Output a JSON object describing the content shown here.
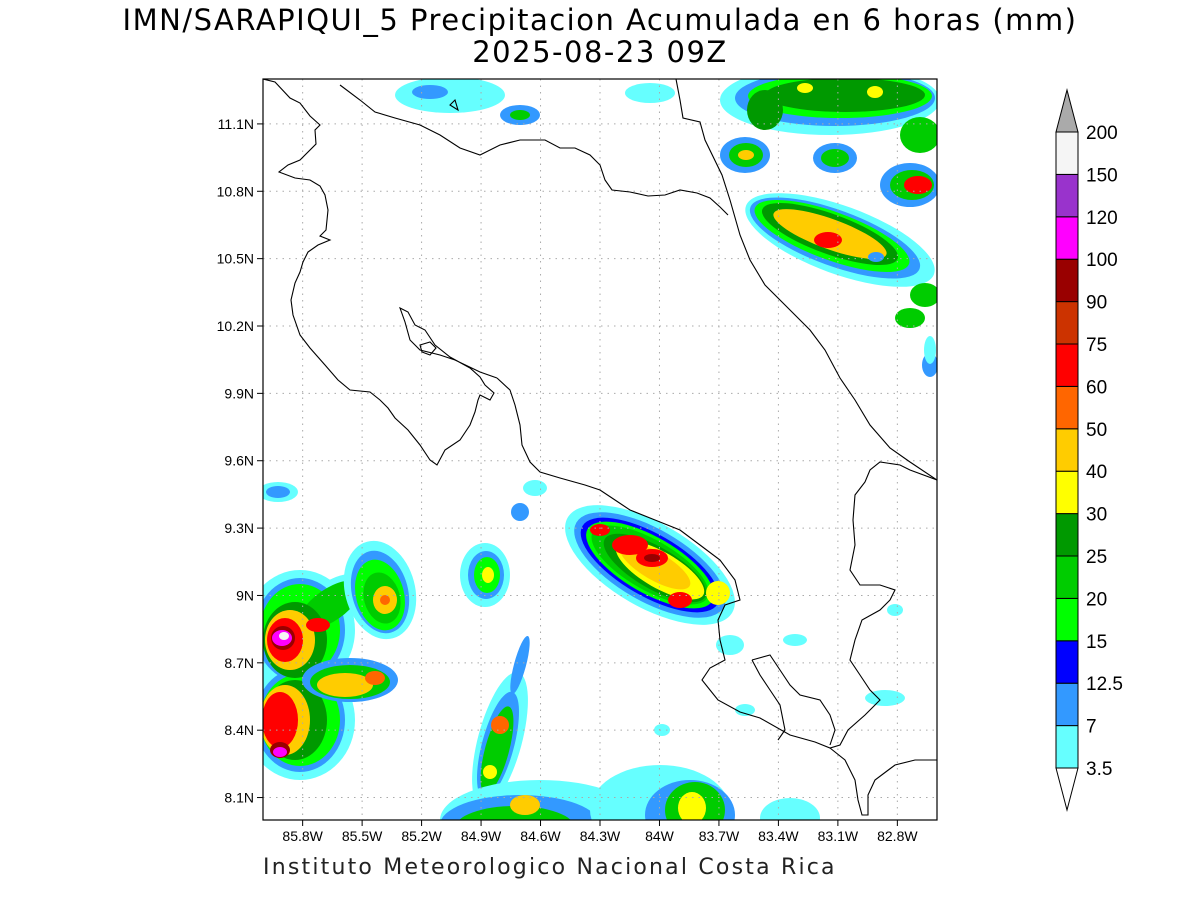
{
  "title_line1": "IMN/SARAPIQUI_5 Precipitacion Acumulada en 6 horas (mm)",
  "title_line2": "2025-08-23 09Z",
  "footer": "Instituto Meteorologico Nacional Costa Rica",
  "map": {
    "lon_range": [
      -86.0,
      -82.6
    ],
    "lat_range": [
      8.0,
      11.3
    ],
    "lon_ticks": [
      "85.8W",
      "85.5W",
      "85.2W",
      "84.9W",
      "84.6W",
      "84.3W",
      "84W",
      "83.7W",
      "83.4W",
      "83.1W",
      "82.8W"
    ],
    "lon_tick_values": [
      -85.8,
      -85.5,
      -85.2,
      -84.9,
      -84.6,
      -84.3,
      -84.0,
      -83.7,
      -83.4,
      -83.1,
      -82.8
    ],
    "lat_ticks": [
      "11.1N",
      "10.8N",
      "10.5N",
      "10.2N",
      "9.9N",
      "9.6N",
      "9.3N",
      "9N",
      "8.7N",
      "8.4N",
      "8.1N"
    ],
    "lat_tick_values": [
      11.1,
      10.8,
      10.5,
      10.2,
      9.9,
      9.6,
      9.3,
      9.0,
      8.7,
      8.4,
      8.1
    ],
    "grid": true
  },
  "colorbar": {
    "levels": [
      "3.5",
      "7",
      "12.5",
      "15",
      "20",
      "25",
      "30",
      "40",
      "50",
      "60",
      "75",
      "90",
      "100",
      "120",
      "150",
      "200"
    ],
    "colors": [
      "#66ffff",
      "#3399ff",
      "#0000ff",
      "#00ff00",
      "#00cc00",
      "#009900",
      "#ffff00",
      "#ffcc00",
      "#ff6600",
      "#ff0000",
      "#cc3300",
      "#990000",
      "#ff00ff",
      "#9933cc",
      "#f5f5f5",
      "#aaaaaa"
    ]
  },
  "colors": {
    "c1": "#66ffff",
    "c2": "#3399ff",
    "c3": "#0000ff",
    "c4": "#00ff00",
    "c5": "#00cc00",
    "c6": "#009900",
    "c7": "#ffff00",
    "c8": "#ffcc00",
    "c9": "#ff6600",
    "c10": "#ff0000",
    "c11": "#cc3300",
    "c12": "#990000",
    "c13": "#ff00ff",
    "c14": "#9933cc"
  }
}
